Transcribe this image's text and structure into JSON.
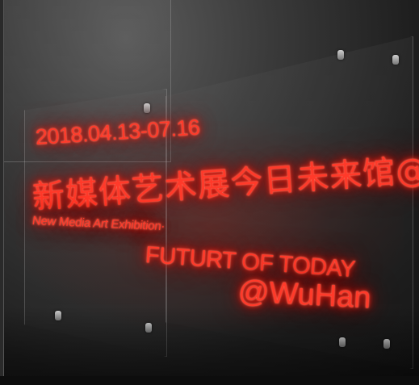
{
  "photo": {
    "sign": {
      "date_line": "2018.04.13-07.16",
      "chinese_line": "新媒体艺术展今日未来馆@武汉",
      "english_line_small": "New Media Art Exhibition·",
      "english_line_mid": "FUTURT OF TODAY",
      "english_line_large": "@WuHan",
      "neon_color": "#ff3a2a"
    },
    "wall_color": "#3a3a3a"
  }
}
